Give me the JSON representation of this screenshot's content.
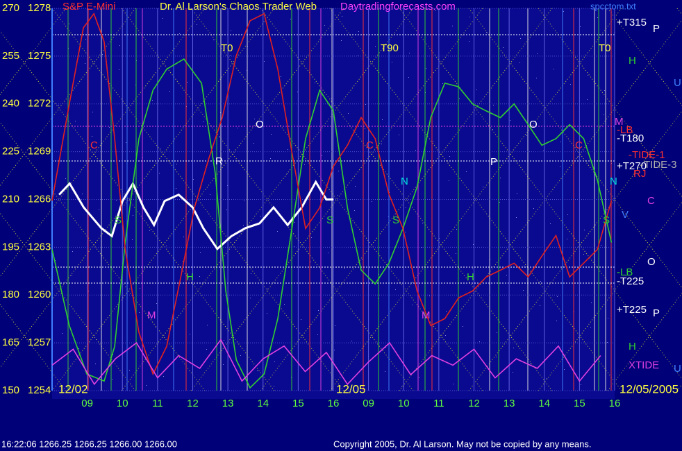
{
  "chart_data": {
    "type": "line",
    "symbol": "S&P E-Mini",
    "title": "Dr. Al Larson's Chaos Trader Web",
    "site": "Daytradingforecasts.com",
    "file": "spcctom.txt",
    "xlim": [
      0,
      16
    ],
    "xticks": [
      {
        "value": 1,
        "label": "09"
      },
      {
        "value": 2,
        "label": "10"
      },
      {
        "value": 3,
        "label": "11"
      },
      {
        "value": 4,
        "label": "12"
      },
      {
        "value": 5,
        "label": "13"
      },
      {
        "value": 6,
        "label": "14"
      },
      {
        "value": 7,
        "label": "15"
      },
      {
        "value": 8,
        "label": "16"
      },
      {
        "value": 9,
        "label": "09"
      },
      {
        "value": 10,
        "label": "10"
      },
      {
        "value": 11,
        "label": "11"
      },
      {
        "value": 12,
        "label": "12"
      },
      {
        "value": 13,
        "label": "13"
      },
      {
        "value": 14,
        "label": "14"
      },
      {
        "value": 15,
        "label": "15"
      },
      {
        "value": 16,
        "label": "16"
      }
    ],
    "date_labels": [
      "12/02",
      "12/05",
      "12/05/2005"
    ],
    "ylim": [
      1254,
      1278
    ],
    "yticks": [
      1254,
      1257,
      1260,
      1263,
      1266,
      1269,
      1272,
      1275,
      1278
    ],
    "y2lim": [
      150,
      270
    ],
    "y2ticks": [
      150,
      165,
      180,
      195,
      210,
      225,
      240,
      255,
      270
    ],
    "grid": true,
    "series": [
      {
        "color": "#ffffff",
        "x": [
          0.2,
          0.5,
          0.9,
          1.4,
          1.7,
          2.0,
          2.3,
          2.6,
          2.9,
          3.2,
          3.6,
          4.0,
          4.3,
          4.7,
          5.1,
          5.5,
          5.9,
          6.3,
          6.7,
          7.1,
          7.5,
          7.8,
          8.0
        ],
        "values": [
          1266.3,
          1267.0,
          1265.5,
          1264.2,
          1263.7,
          1265.9,
          1267.0,
          1265.5,
          1264.4,
          1265.9,
          1266.3,
          1265.5,
          1264.2,
          1262.9,
          1263.7,
          1264.2,
          1264.5,
          1265.5,
          1264.4,
          1265.5,
          1267.1,
          1266.0,
          1266.0
        ]
      },
      {
        "color": "#30d030",
        "axis": "y2",
        "x": [
          0,
          0.49,
          0.99,
          1.48,
          1.78,
          2.08,
          2.47,
          2.87,
          3.26,
          3.75,
          4.25,
          4.64,
          4.94,
          5.24,
          5.63,
          6.03,
          6.42,
          6.82,
          7.21,
          7.61,
          8.0,
          8.4,
          8.79,
          9.19,
          9.58,
          9.98,
          10.38,
          10.77,
          11.17,
          11.56,
          11.96,
          12.35,
          12.75,
          13.14,
          13.54,
          13.93,
          14.33,
          14.72,
          15.12,
          15.51,
          15.91
        ],
        "values": [
          194.3,
          170.4,
          155.2,
          153,
          163.9,
          196.5,
          229.1,
          244.3,
          250.9,
          254.1,
          246.5,
          218.3,
          181.3,
          159.6,
          150.9,
          155.2,
          172.6,
          200.9,
          229.1,
          244.3,
          237.8,
          207.4,
          187.8,
          183.5,
          190,
          200.9,
          213.9,
          235.7,
          246.5,
          245.4,
          240,
          237.8,
          235.7,
          240,
          233.5,
          227,
          229.1,
          233.5,
          229.1,
          216.1,
          196.5
        ]
      },
      {
        "color": "#e02020",
        "axis": "y2",
        "x": [
          0,
          0.49,
          0.89,
          1.19,
          1.48,
          1.78,
          2.08,
          2.47,
          2.87,
          3.26,
          3.66,
          4.05,
          4.45,
          4.84,
          5.24,
          5.63,
          6.03,
          6.42,
          6.82,
          7.21,
          7.61,
          8.0,
          8.4,
          8.79,
          9.19,
          9.58,
          9.98,
          10.38,
          10.77,
          11.17,
          11.56,
          11.96,
          12.35,
          12.75,
          13.14,
          13.54,
          13.93,
          14.33,
          14.72,
          15.12,
          15.51,
          15.91
        ],
        "values": [
          209.6,
          240,
          263.9,
          268.3,
          259.6,
          229.1,
          194.3,
          168.3,
          155.2,
          163.9,
          185.7,
          207.4,
          222.6,
          235.7,
          255.2,
          266.1,
          268.3,
          250.9,
          224.8,
          200.9,
          207.4,
          220.4,
          227,
          235.7,
          229.1,
          211.7,
          200.9,
          181.3,
          170.4,
          172.6,
          179.1,
          181.3,
          185.7,
          187.8,
          190,
          185.7,
          192.2,
          198.7,
          185.7,
          190,
          194.3,
          209.6
        ]
      },
      {
        "color": "#e040e0",
        "axis": "y2",
        "x": [
          0,
          0.6,
          1.2,
          1.8,
          2.4,
          3.0,
          3.6,
          4.2,
          4.8,
          5.4,
          6.0,
          6.6,
          7.2,
          7.8,
          8.4,
          9.0,
          9.6,
          10.2,
          10.8,
          11.4,
          12.0,
          12.6,
          13.2,
          13.8,
          14.4,
          15.0,
          15.6
        ],
        "values": [
          158,
          163,
          152,
          160,
          165,
          154,
          161,
          157,
          166,
          153,
          160,
          164,
          156,
          162,
          152,
          159,
          165,
          155,
          161,
          158,
          163,
          154,
          160,
          157,
          164,
          153,
          161
        ]
      }
    ],
    "right_labels": [
      "+T315",
      "P",
      "H",
      "U",
      "M",
      "-LB",
      "-T180",
      "-TIDE-1",
      "+T270",
      "-TIDE-3",
      "RJ",
      "N",
      "C",
      "V",
      "O",
      "-LB",
      "-T225",
      "+T225",
      "P",
      "H",
      "XTIDE",
      "U"
    ],
    "annotations": [
      "T0",
      "T90",
      "T0",
      "C",
      "C",
      "C",
      "O",
      "O",
      "R",
      "P",
      "H",
      "H",
      "M",
      "M",
      "N",
      "S",
      "S",
      "S",
      "S"
    ],
    "status": "16:22:06  1266.25 1266.25 1266.00 1266.00",
    "copyright": "Copyright 2005, Dr. Al Larson. May not be copied by any means."
  }
}
